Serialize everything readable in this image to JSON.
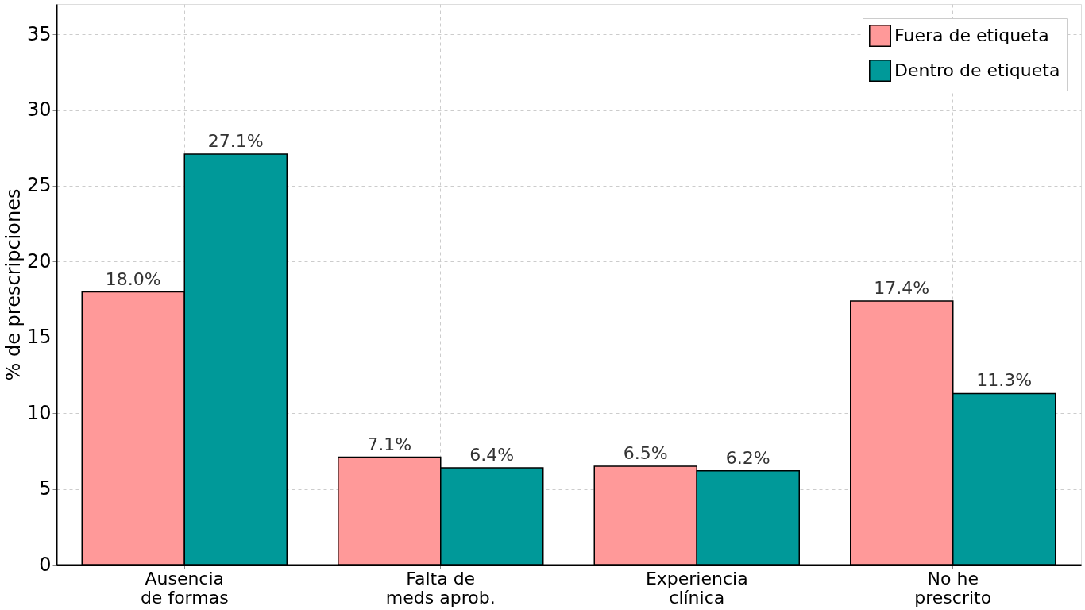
{
  "chart_data": {
    "type": "bar",
    "ylabel": "% de prescripciones",
    "categories": [
      "Ausencia\nde formas",
      "Falta de\nmeds aprob.",
      "Experiencia\nclínica",
      "No he\nprescrito"
    ],
    "series": [
      {
        "name": "Fuera de etiqueta",
        "color": "#ff9999",
        "values": [
          18.0,
          7.1,
          6.5,
          17.4
        ],
        "value_labels": [
          "18.0%",
          "7.1%",
          "6.5%",
          "17.4%"
        ]
      },
      {
        "name": "Dentro de etiqueta",
        "color": "#009999",
        "values": [
          27.1,
          6.4,
          6.2,
          11.3
        ],
        "value_labels": [
          "27.1%",
          "6.4%",
          "6.2%",
          "11.3%"
        ]
      }
    ],
    "ylim": [
      0,
      37
    ],
    "yticks": [
      0,
      5,
      10,
      15,
      20,
      25,
      30,
      35
    ],
    "grid": true,
    "legend": "top right"
  }
}
